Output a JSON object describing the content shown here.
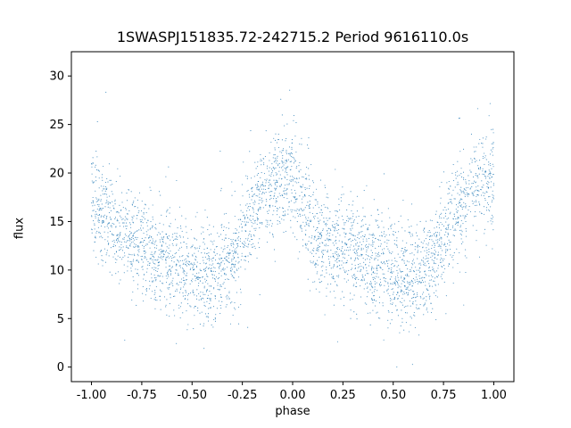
{
  "chart_data": {
    "type": "scatter",
    "title": "1SWASPJ151835.72-242715.2 Period 9616110.0s",
    "xlabel": "phase",
    "ylabel": "flux",
    "xlim": [
      -1.1,
      1.1
    ],
    "ylim": [
      -1.5,
      32.5
    ],
    "xticks": [
      "-1.00",
      "-0.75",
      "-0.50",
      "-0.25",
      "0.00",
      "0.25",
      "0.50",
      "0.75",
      "1.00"
    ],
    "yticks": [
      "0",
      "5",
      "10",
      "15",
      "20",
      "25",
      "30"
    ],
    "grid": false,
    "color": "#1f77b4",
    "series": [
      {
        "profile": [
          {
            "x": -1.0,
            "y": 17.0
          },
          {
            "x": -0.95,
            "y": 16.5
          },
          {
            "x": -0.9,
            "y": 14.5
          },
          {
            "x": -0.85,
            "y": 14.0
          },
          {
            "x": -0.8,
            "y": 13.0
          },
          {
            "x": -0.75,
            "y": 12.5
          },
          {
            "x": -0.7,
            "y": 12.0
          },
          {
            "x": -0.65,
            "y": 11.5
          },
          {
            "x": -0.6,
            "y": 11.0
          },
          {
            "x": -0.55,
            "y": 10.5
          },
          {
            "x": -0.5,
            "y": 10.0
          },
          {
            "x": -0.45,
            "y": 9.5
          },
          {
            "x": -0.4,
            "y": 9.5
          },
          {
            "x": -0.35,
            "y": 10.0
          },
          {
            "x": -0.3,
            "y": 11.0
          },
          {
            "x": -0.25,
            "y": 13.0
          },
          {
            "x": -0.2,
            "y": 15.5
          },
          {
            "x": -0.15,
            "y": 17.5
          },
          {
            "x": -0.1,
            "y": 18.5
          },
          {
            "x": -0.05,
            "y": 19.5
          },
          {
            "x": 0.0,
            "y": 20.0
          },
          {
            "x": 0.05,
            "y": 17.0
          },
          {
            "x": 0.1,
            "y": 14.0
          },
          {
            "x": 0.15,
            "y": 13.0
          },
          {
            "x": 0.2,
            "y": 12.5
          },
          {
            "x": 0.25,
            "y": 12.5
          },
          {
            "x": 0.3,
            "y": 12.0
          },
          {
            "x": 0.35,
            "y": 11.5
          },
          {
            "x": 0.4,
            "y": 11.0
          },
          {
            "x": 0.45,
            "y": 10.5
          },
          {
            "x": 0.5,
            "y": 10.0
          },
          {
            "x": 0.55,
            "y": 9.5
          },
          {
            "x": 0.6,
            "y": 9.5
          },
          {
            "x": 0.65,
            "y": 10.0
          },
          {
            "x": 0.7,
            "y": 11.0
          },
          {
            "x": 0.75,
            "y": 13.0
          },
          {
            "x": 0.8,
            "y": 15.5
          },
          {
            "x": 0.85,
            "y": 17.5
          },
          {
            "x": 0.9,
            "y": 18.5
          },
          {
            "x": 0.95,
            "y": 19.5
          },
          {
            "x": 1.0,
            "y": 20.0
          }
        ],
        "spread": 2.5,
        "x_range": [
          -1.0,
          1.0
        ],
        "y_range": [
          0.0,
          30.5
        ]
      }
    ]
  }
}
